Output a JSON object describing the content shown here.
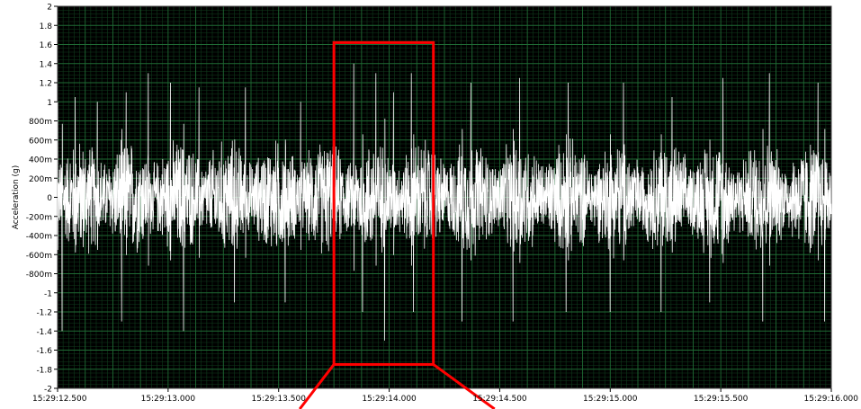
{
  "chart_data": {
    "type": "line",
    "ylabel": "Acceleration (g)",
    "ylim": [
      -2,
      2
    ],
    "xlim": [
      "15:29:12.500",
      "15:29:16.000"
    ],
    "x_ticks": [
      "15:29:12.500",
      "15:29:13.000",
      "15:29:13.500",
      "15:29:14.000",
      "15:29:14.500",
      "15:29:15.000",
      "15:29:15.500",
      "15:29:16.000"
    ],
    "y_ticks": [
      {
        "value": 2,
        "label": "2"
      },
      {
        "value": 1.8,
        "label": "1.8"
      },
      {
        "value": 1.6,
        "label": "1.6"
      },
      {
        "value": 1.4,
        "label": "1.4"
      },
      {
        "value": 1.2,
        "label": "1.2"
      },
      {
        "value": 1,
        "label": "1"
      },
      {
        "value": 0.8,
        "label": "800m"
      },
      {
        "value": 0.6,
        "label": "600m"
      },
      {
        "value": 0.4,
        "label": "400m"
      },
      {
        "value": 0.2,
        "label": "200m"
      },
      {
        "value": 0,
        "label": "0"
      },
      {
        "value": -0.2,
        "label": "-200m"
      },
      {
        "value": -0.4,
        "label": "-400m"
      },
      {
        "value": -0.6,
        "label": "-600m"
      },
      {
        "value": -0.8,
        "label": "-800m"
      },
      {
        "value": -1,
        "label": "-1"
      },
      {
        "value": -1.2,
        "label": "-1.2"
      },
      {
        "value": -1.4,
        "label": "-1.4"
      },
      {
        "value": -1.6,
        "label": "-1.6"
      },
      {
        "value": -1.8,
        "label": "-1.8"
      },
      {
        "value": -2,
        "label": "-2"
      }
    ],
    "grid": true,
    "series": [
      {
        "color": "#ffffff",
        "peaks": [
          {
            "x": "15:29:12.500",
            "y": 1.0
          },
          {
            "x": "15:29:12.580",
            "y": 1.05
          },
          {
            "x": "15:29:12.680",
            "y": 1.0
          },
          {
            "x": "15:29:12.810",
            "y": 1.1
          },
          {
            "x": "15:29:12.910",
            "y": 1.3
          },
          {
            "x": "15:29:13.010",
            "y": 1.2
          },
          {
            "x": "15:29:13.140",
            "y": 1.15
          },
          {
            "x": "15:29:13.350",
            "y": 1.15
          },
          {
            "x": "15:29:13.600",
            "y": 1.0
          },
          {
            "x": "15:29:13.840",
            "y": 1.4
          },
          {
            "x": "15:29:13.940",
            "y": 1.3
          },
          {
            "x": "15:29:14.020",
            "y": 1.1
          },
          {
            "x": "15:29:14.100",
            "y": 1.3
          },
          {
            "x": "15:29:14.370",
            "y": 1.2
          },
          {
            "x": "15:29:14.590",
            "y": 1.25
          },
          {
            "x": "15:29:14.810",
            "y": 1.2
          },
          {
            "x": "15:29:15.060",
            "y": 1.2
          },
          {
            "x": "15:29:15.280",
            "y": 1.05
          },
          {
            "x": "15:29:15.510",
            "y": 1.25
          },
          {
            "x": "15:29:15.720",
            "y": 1.3
          },
          {
            "x": "15:29:15.940",
            "y": 1.2
          }
        ],
        "troughs": [
          {
            "x": "15:29:12.520",
            "y": -1.4
          },
          {
            "x": "15:29:12.790",
            "y": -1.3
          },
          {
            "x": "15:29:13.070",
            "y": -1.4
          },
          {
            "x": "15:29:13.300",
            "y": -1.1
          },
          {
            "x": "15:29:13.530",
            "y": -1.1
          },
          {
            "x": "15:29:13.750",
            "y": -1.1
          },
          {
            "x": "15:29:13.880",
            "y": -1.2
          },
          {
            "x": "15:29:13.980",
            "y": -1.5
          },
          {
            "x": "15:29:14.110",
            "y": -1.2
          },
          {
            "x": "15:29:14.330",
            "y": -1.3
          },
          {
            "x": "15:29:14.560",
            "y": -1.3
          },
          {
            "x": "15:29:14.800",
            "y": -1.2
          },
          {
            "x": "15:29:15.000",
            "y": -1.2
          },
          {
            "x": "15:29:15.230",
            "y": -1.2
          },
          {
            "x": "15:29:15.450",
            "y": -1.1
          },
          {
            "x": "15:29:15.690",
            "y": -1.3
          },
          {
            "x": "15:29:15.970",
            "y": -1.3
          }
        ]
      }
    ],
    "highlight": {
      "x_from": "15:29:13.750",
      "x_to": "15:29:14.200",
      "y_from": -1.75,
      "y_to": 1.62,
      "color": "#ff0000"
    },
    "plot_background": "#000000",
    "grid_color": "#1f6b34"
  }
}
